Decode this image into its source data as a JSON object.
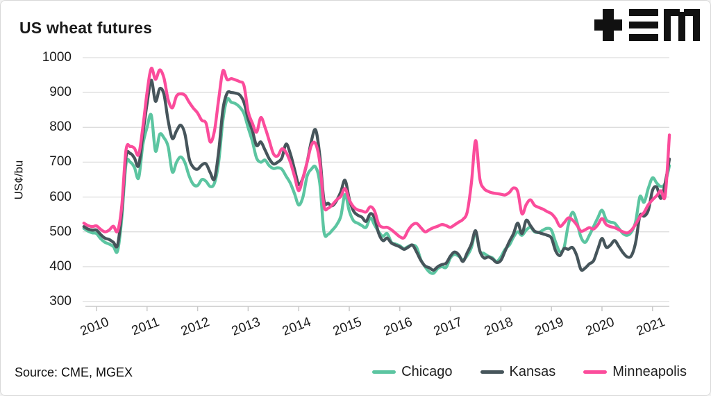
{
  "header": {
    "title": "US wheat futures"
  },
  "y_axis": {
    "label": "US¢/bu",
    "ticks": [
      "1000",
      "900",
      "800",
      "700",
      "600",
      "500",
      "400",
      "300"
    ]
  },
  "x_axis": {
    "ticks": [
      "2010",
      "2011",
      "2012",
      "2013",
      "2014",
      "2015",
      "2016",
      "2017",
      "2018",
      "2019",
      "2020",
      "2021"
    ]
  },
  "legend": {
    "items": [
      {
        "label": "Chicago",
        "color": "#5CC5A1"
      },
      {
        "label": "Kansas",
        "color": "#46555B"
      },
      {
        "label": "Minneapolis",
        "color": "#FB4C9B"
      }
    ]
  },
  "footer": {
    "source": "Source: CME, MGEX"
  },
  "colors": {
    "grid": "#dddddd",
    "axis": "#c9c9c9",
    "text": "#1a1a1a"
  },
  "chart_data": {
    "type": "line",
    "title": "US wheat futures",
    "xlabel": "",
    "ylabel": "US¢/bu",
    "ylim": [
      300,
      1000
    ],
    "y_ticks": [
      1000,
      900,
      800,
      700,
      600,
      500,
      400,
      300
    ],
    "x_ticks": [
      2010,
      2011,
      2012,
      2013,
      2014,
      2015,
      2016,
      2017,
      2018,
      2019,
      2020,
      2021
    ],
    "grid": "horizontal",
    "legend_position": "bottom-right",
    "x_start": 2009.75,
    "points_per_year": 12,
    "units": "US cents per bushel, monthly, Oct 2009 - May 2021",
    "series": [
      {
        "name": "Chicago",
        "color": "#5CC5A1",
        "values": [
          510,
          502,
          497,
          495,
          480,
          470,
          465,
          458,
          445,
          540,
          695,
          700,
          685,
          655,
          750,
          800,
          835,
          732,
          780,
          770,
          745,
          672,
          700,
          715,
          698,
          660,
          636,
          633,
          650,
          645,
          630,
          640,
          700,
          820,
          880,
          872,
          868,
          858,
          840,
          799,
          760,
          712,
          700,
          706,
          690,
          682,
          684,
          680,
          660,
          640,
          610,
          577,
          600,
          660,
          680,
          686,
          640,
          500,
          493,
          505,
          520,
          545,
          607,
          560,
          532,
          525,
          518,
          513,
          540,
          520,
          500,
          487,
          495,
          470,
          465,
          460,
          452,
          458,
          462,
          455,
          420,
          400,
          385,
          381,
          395,
          400,
          398,
          425,
          435,
          430,
          420,
          432,
          455,
          498,
          445,
          438,
          430,
          425,
          415,
          428,
          450,
          462,
          485,
          500,
          490,
          505,
          513,
          500,
          498,
          505,
          510,
          505,
          470,
          443,
          455,
          520,
          556,
          530,
          485,
          470,
          490,
          515,
          540,
          562,
          535,
          528,
          525,
          510,
          495,
          490,
          500,
          530,
          601,
          585,
          625,
          655,
          640,
          630,
          640,
          690
        ]
      },
      {
        "name": "Kansas",
        "color": "#46555B",
        "values": [
          515,
          508,
          505,
          505,
          492,
          482,
          478,
          470,
          462,
          560,
          715,
          725,
          712,
          690,
          780,
          868,
          935,
          875,
          911,
          895,
          820,
          768,
          790,
          806,
          780,
          710,
          685,
          680,
          692,
          695,
          670,
          652,
          730,
          850,
          898,
          900,
          898,
          893,
          872,
          825,
          790,
          748,
          758,
          735,
          710,
          695,
          700,
          712,
          752,
          725,
          680,
          636,
          655,
          700,
          760,
          793,
          720,
          590,
          582,
          575,
          590,
          615,
          648,
          595,
          560,
          548,
          542,
          530,
          552,
          540,
          495,
          475,
          482,
          468,
          462,
          457,
          450,
          456,
          462,
          442,
          418,
          402,
          397,
          390,
          400,
          406,
          410,
          430,
          442,
          434,
          415,
          440,
          465,
          503,
          445,
          425,
          428,
          422,
          412,
          418,
          445,
          472,
          495,
          525,
          495,
          533,
          518,
          502,
          498,
          494,
          490,
          482,
          445,
          432,
          452,
          450,
          455,
          432,
          392,
          396,
          408,
          417,
          450,
          481,
          456,
          462,
          475,
          458,
          440,
          428,
          432,
          470,
          546,
          545,
          562,
          619,
          628,
          596,
          640,
          709
        ]
      },
      {
        "name": "Minneapolis",
        "color": "#FB4C9B",
        "values": [
          525,
          518,
          515,
          517,
          507,
          500,
          505,
          516,
          502,
          575,
          735,
          745,
          740,
          722,
          800,
          900,
          969,
          938,
          965,
          942,
          880,
          856,
          890,
          896,
          892,
          872,
          855,
          841,
          820,
          812,
          758,
          790,
          880,
          962,
          937,
          940,
          936,
          931,
          920,
          845,
          812,
          786,
          828,
          800,
          762,
          724,
          718,
          738,
          728,
          700,
          660,
          618,
          655,
          700,
          748,
          753,
          700,
          575,
          568,
          578,
          592,
          602,
          624,
          592,
          572,
          563,
          560,
          557,
          572,
          560,
          522,
          513,
          513,
          506,
          496,
          486,
          483,
          505,
          520,
          524,
          512,
          500,
          506,
          512,
          516,
          521,
          518,
          513,
          520,
          528,
          536,
          557,
          640,
          762,
          652,
          624,
          616,
          612,
          610,
          608,
          606,
          613,
          626,
          615,
          552,
          578,
          592,
          576,
          570,
          565,
          558,
          552,
          538,
          516,
          526,
          540,
          534,
          520,
          502,
          506,
          512,
          508,
          520,
          538,
          521,
          515,
          512,
          506,
          500,
          497,
          505,
          522,
          543,
          556,
          578,
          592,
          604,
          618,
          604,
          778
        ]
      }
    ]
  }
}
